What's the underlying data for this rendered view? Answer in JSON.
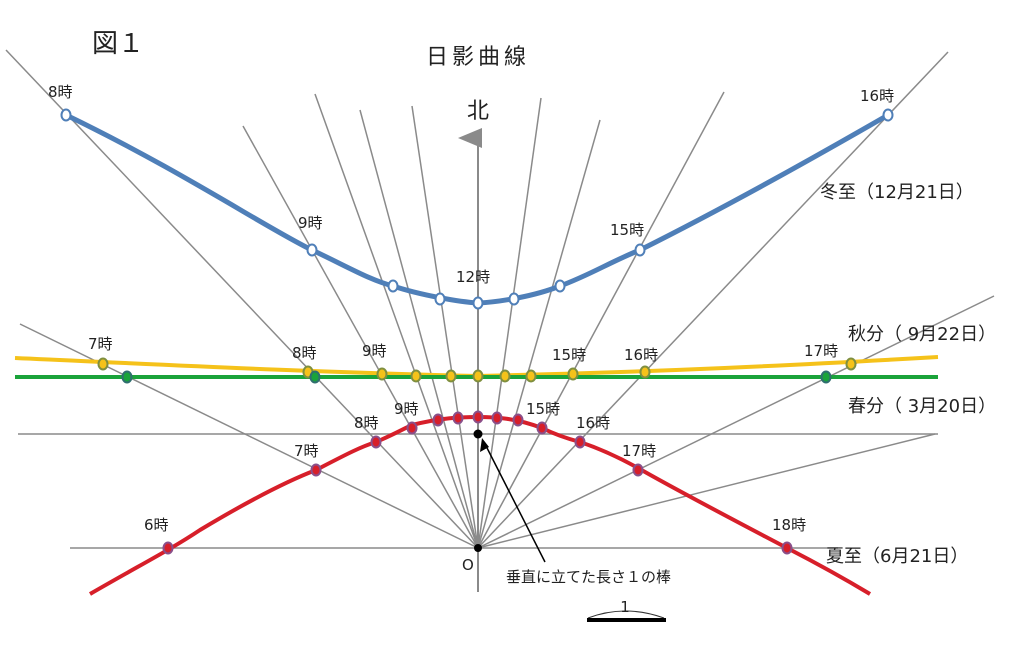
{
  "figure_label": "図１",
  "title": "日影曲線",
  "north_label": "北",
  "origin_label": "O",
  "pole_label": "垂直に立てた長さ１の棒",
  "scale_label": "1",
  "colors": {
    "winter": "#4f7fb8",
    "autumn": "#f5c21a",
    "spring": "#1aa33a",
    "summer": "#d71f2a",
    "ray": "#8a8a8a",
    "marker_summer": "#8a4f8a",
    "marker_equinox": "#7f8f3f",
    "marker_spring_end": "#2f6f6f"
  },
  "curves": {
    "winter": {
      "name": "冬至（12月21日）",
      "hour_labels": [
        "8時",
        "9時",
        "12時",
        "15時",
        "16時"
      ]
    },
    "autumn": {
      "name": "秋分（ 9月22日）",
      "hour_labels": [
        "7時",
        "8時",
        "9時",
        "15時",
        "16時",
        "17時"
      ]
    },
    "spring": {
      "name": "春分（ 3月20日）"
    },
    "summer": {
      "name": "夏至（6月21日）",
      "hour_labels": [
        "6時",
        "7時",
        "8時",
        "9時",
        "15時",
        "16時",
        "17時",
        "18時"
      ]
    }
  }
}
